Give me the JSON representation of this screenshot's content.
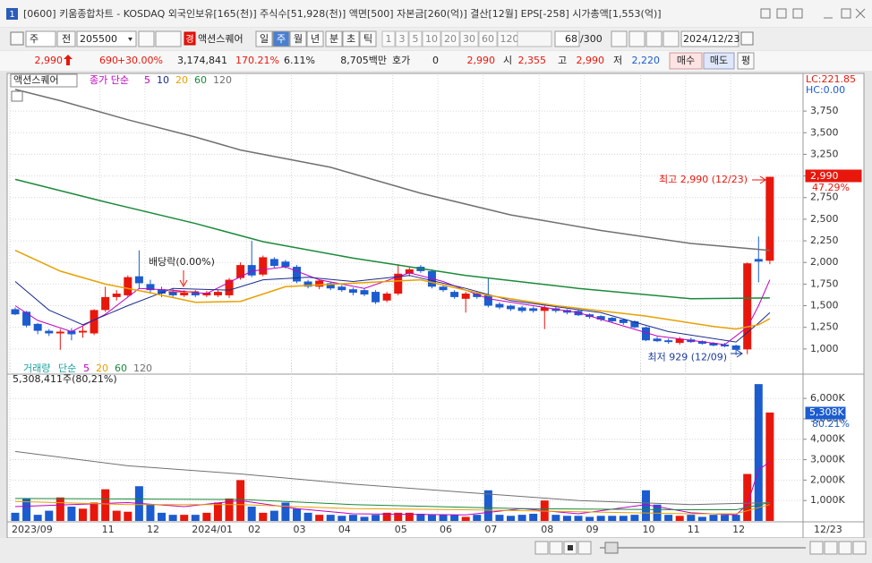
{
  "title_bar": {
    "number": "1",
    "text": "[0600] 키움종합차트 - KOSDAQ 외국인보유[165(천)] 주식수[51,928(천)] 액면[500] 자본금[260(억)] 결산[12월] EPS[-258] 시가총액[1,553(억)]"
  },
  "toolbar": {
    "period_type": "주",
    "adjust": "전",
    "code": "205500",
    "badge": "경",
    "name": "액션스퀘어",
    "periods": [
      "일",
      "주",
      "월",
      "년",
      "분",
      "초",
      "틱"
    ],
    "minutes": [
      "1",
      "3",
      "5",
      "10",
      "20",
      "30",
      "60",
      "120"
    ],
    "count": "68",
    "max": "/300",
    "date": "2024/12/23"
  },
  "quote": {
    "price": "2,990",
    "change": "690",
    "change_pct": "+30.00%",
    "volume": "3,174,841",
    "volume_pct": "170.21%",
    "turnover": "6.11%",
    "amount": "8,705백만",
    "bid_label": "호가",
    "bid_qty": "0",
    "bid_price": "2,990",
    "open_label": "시",
    "open": "2,355",
    "high_label": "고",
    "high": "2,990",
    "low_label": "저",
    "low": "2,220",
    "buy": "매수",
    "sell": "매도",
    "avg": "평"
  },
  "chart_data": [
    {
      "type": "candlestick",
      "name": "액션스퀘어",
      "ma_label": "종가 단순",
      "lc_label": "LC:221.85",
      "hc_label": "HC:0.00",
      "last_label": "2,990",
      "last_pct": "47.29%",
      "annotations": [
        "배당락(0.00%)",
        "최고 2,990 (12/23)",
        "최저 929 (12/09)"
      ],
      "up_color": "#e8170c",
      "down_color": "#1b5ccf",
      "ohlc": [
        [
          1460,
          1480,
          1390,
          1400
        ],
        [
          1430,
          1440,
          1250,
          1270
        ],
        [
          1290,
          1300,
          1170,
          1210
        ],
        [
          1210,
          1230,
          1150,
          1180
        ],
        [
          1180,
          1230,
          990,
          1200
        ],
        [
          1210,
          1240,
          1100,
          1170
        ],
        [
          1190,
          1260,
          1130,
          1210
        ],
        [
          1180,
          1460,
          1160,
          1450
        ],
        [
          1450,
          1720,
          1430,
          1600
        ],
        [
          1600,
          1680,
          1560,
          1640
        ],
        [
          1620,
          1850,
          1600,
          1830
        ],
        [
          1840,
          2140,
          1700,
          1760
        ],
        [
          1750,
          1800,
          1640,
          1680
        ],
        [
          1690,
          1720,
          1600,
          1640
        ],
        [
          1660,
          1700,
          1600,
          1620
        ],
        [
          1620,
          1680,
          1600,
          1650
        ],
        [
          1650,
          1680,
          1600,
          1620
        ],
        [
          1620,
          1670,
          1600,
          1650
        ],
        [
          1620,
          1680,
          1600,
          1660
        ],
        [
          1620,
          1820,
          1590,
          1800
        ],
        [
          1820,
          2000,
          1800,
          1970
        ],
        [
          1970,
          2250,
          1830,
          1850
        ],
        [
          1860,
          2080,
          1840,
          2060
        ],
        [
          2040,
          2060,
          1940,
          1960
        ],
        [
          2010,
          2030,
          1930,
          1950
        ],
        [
          1950,
          1970,
          1760,
          1780
        ],
        [
          1780,
          1800,
          1700,
          1720
        ],
        [
          1720,
          1800,
          1690,
          1790
        ],
        [
          1760,
          1780,
          1680,
          1700
        ],
        [
          1720,
          1740,
          1660,
          1680
        ],
        [
          1690,
          1710,
          1620,
          1650
        ],
        [
          1680,
          1700,
          1610,
          1630
        ],
        [
          1660,
          1680,
          1520,
          1540
        ],
        [
          1560,
          1660,
          1540,
          1640
        ],
        [
          1640,
          1980,
          1620,
          1870
        ],
        [
          1870,
          1940,
          1840,
          1920
        ],
        [
          1950,
          1970,
          1880,
          1900
        ],
        [
          1900,
          1920,
          1700,
          1720
        ],
        [
          1720,
          1740,
          1660,
          1680
        ],
        [
          1660,
          1680,
          1580,
          1600
        ],
        [
          1580,
          1660,
          1420,
          1640
        ],
        [
          1640,
          1660,
          1580,
          1600
        ],
        [
          1620,
          1820,
          1480,
          1500
        ],
        [
          1520,
          1540,
          1460,
          1480
        ],
        [
          1500,
          1510,
          1440,
          1460
        ],
        [
          1480,
          1500,
          1420,
          1440
        ],
        [
          1470,
          1490,
          1420,
          1440
        ],
        [
          1440,
          1500,
          1230,
          1480
        ],
        [
          1470,
          1490,
          1420,
          1440
        ],
        [
          1450,
          1460,
          1400,
          1420
        ],
        [
          1440,
          1450,
          1380,
          1390
        ],
        [
          1400,
          1410,
          1350,
          1370
        ],
        [
          1380,
          1390,
          1320,
          1340
        ],
        [
          1360,
          1370,
          1300,
          1320
        ],
        [
          1340,
          1350,
          1280,
          1300
        ],
        [
          1320,
          1330,
          1240,
          1250
        ],
        [
          1250,
          1260,
          1090,
          1100
        ],
        [
          1120,
          1140,
          1080,
          1090
        ],
        [
          1100,
          1120,
          1060,
          1080
        ],
        [
          1070,
          1140,
          1050,
          1120
        ],
        [
          1110,
          1130,
          1070,
          1080
        ],
        [
          1090,
          1100,
          1050,
          1060
        ],
        [
          1070,
          1080,
          1030,
          1040
        ],
        [
          1050,
          1070,
          1020,
          1030
        ],
        [
          1040,
          1050,
          929,
          990
        ],
        [
          995,
          2000,
          940,
          1990
        ],
        [
          2040,
          2300,
          1770,
          2010
        ],
        [
          2020,
          2990,
          1980,
          2990
        ]
      ],
      "series": [
        {
          "name": "5",
          "color": "#c000c0",
          "x": [
            0,
            2,
            5,
            8,
            11,
            14,
            17,
            21,
            24,
            27,
            31,
            35,
            38,
            42,
            50,
            57,
            63,
            65,
            66,
            67
          ],
          "values": [
            1500,
            1330,
            1200,
            1400,
            1700,
            1680,
            1640,
            1900,
            1950,
            1800,
            1700,
            1880,
            1780,
            1580,
            1420,
            1150,
            1050,
            1250,
            1500,
            1800
          ]
        },
        {
          "name": "10",
          "color": "#1a2a8c",
          "x": [
            0,
            3,
            6,
            10,
            14,
            19,
            22,
            26,
            30,
            35,
            40,
            44,
            52,
            58,
            64,
            66,
            67
          ],
          "values": [
            1780,
            1450,
            1280,
            1500,
            1700,
            1680,
            1800,
            1830,
            1780,
            1850,
            1700,
            1560,
            1420,
            1200,
            1080,
            1300,
            1420
          ]
        },
        {
          "name": "20",
          "color": "#e8a000",
          "x": [
            0,
            4,
            8,
            12,
            16,
            20,
            24,
            30,
            36,
            42,
            48,
            56,
            62,
            64,
            66,
            67
          ],
          "values": [
            2140,
            1900,
            1750,
            1650,
            1540,
            1550,
            1720,
            1760,
            1800,
            1620,
            1500,
            1380,
            1260,
            1230,
            1280,
            1350
          ]
        },
        {
          "name": "60",
          "color": "#1a8a3a",
          "x": [
            0,
            8,
            16,
            22,
            30,
            40,
            50,
            60,
            67
          ],
          "values": [
            2960,
            2700,
            2450,
            2240,
            2050,
            1850,
            1700,
            1580,
            1590
          ]
        },
        {
          "name": "120",
          "color": "#707070",
          "x": [
            0,
            4,
            10,
            16,
            20,
            28,
            36,
            44,
            52,
            60,
            67
          ],
          "values": [
            4000,
            3870,
            3650,
            3450,
            3300,
            3100,
            2800,
            2550,
            2370,
            2220,
            2140
          ]
        }
      ],
      "ylim": [
        740,
        4020
      ],
      "yticks": [
        {
          "value": 1000,
          "label": "1,000"
        },
        {
          "value": 1250,
          "label": "1,250"
        },
        {
          "value": 1500,
          "label": "1,500"
        },
        {
          "value": 1750,
          "label": "1,750"
        },
        {
          "value": 2000,
          "label": "2,000"
        },
        {
          "value": 2250,
          "label": "2,250"
        },
        {
          "value": 2500,
          "label": "2,500"
        },
        {
          "value": 2750,
          "label": "2,750"
        },
        {
          "value": 3000,
          "label": "3,000"
        },
        {
          "value": 3250,
          "label": "3,250"
        },
        {
          "value": 3500,
          "label": "3,500"
        },
        {
          "value": 3750,
          "label": "3,750"
        }
      ],
      "xticks": [
        {
          "value": 0,
          "label": "2023/09"
        },
        {
          "value": 8,
          "label": "11"
        },
        {
          "value": 12,
          "label": "12"
        },
        {
          "value": 16,
          "label": "2024/01"
        },
        {
          "value": 21,
          "label": "02"
        },
        {
          "value": 25,
          "label": "03"
        },
        {
          "value": 29,
          "label": "04"
        },
        {
          "value": 34,
          "label": "05"
        },
        {
          "value": 38,
          "label": "06"
        },
        {
          "value": 42,
          "label": "07"
        },
        {
          "value": 47,
          "label": "08"
        },
        {
          "value": 51,
          "label": "09"
        },
        {
          "value": 56,
          "label": "10"
        },
        {
          "value": 60,
          "label": "11"
        },
        {
          "value": 64,
          "label": "12"
        }
      ],
      "x_end_label": "12/23",
      "grid": true
    },
    {
      "type": "bar",
      "name": "거래량",
      "ma_label": "단순",
      "info": "5,308,411주(80,21%)",
      "last_label": "5,308K",
      "last_pct": "80.21%",
      "values": [
        400,
        1100,
        300,
        500,
        1150,
        700,
        600,
        900,
        1550,
        500,
        450,
        1700,
        800,
        400,
        300,
        300,
        300,
        400,
        900,
        1100,
        2000,
        700,
        400,
        500,
        900,
        600,
        400,
        300,
        300,
        250,
        300,
        200,
        300,
        400,
        400,
        400,
        350,
        300,
        300,
        300,
        200,
        300,
        1500,
        300,
        250,
        300,
        350,
        1000,
        300,
        250,
        250,
        200,
        250,
        250,
        250,
        300,
        1500,
        800,
        300,
        250,
        300,
        200,
        300,
        300,
        300,
        2300,
        6700,
        5308
      ],
      "series": [
        {
          "name": "5",
          "color": "#c000c0",
          "x": [
            0,
            5,
            10,
            15,
            20,
            25,
            30,
            40,
            45,
            50,
            56,
            60,
            64,
            65,
            66,
            67
          ],
          "values": [
            700,
            800,
            900,
            700,
            1000,
            600,
            350,
            300,
            600,
            350,
            800,
            400,
            300,
            800,
            2500,
            2900
          ]
        },
        {
          "name": "20",
          "color": "#e8a000",
          "x": [
            0,
            10,
            20,
            30,
            40,
            50,
            60,
            64,
            67
          ],
          "values": [
            950,
            800,
            800,
            600,
            550,
            450,
            350,
            350,
            800
          ]
        },
        {
          "name": "60",
          "color": "#1a8a3a",
          "x": [
            0,
            20,
            30,
            45,
            60,
            64,
            67
          ],
          "values": [
            1100,
            1050,
            800,
            600,
            550,
            550,
            900
          ]
        },
        {
          "name": "120",
          "color": "#707070",
          "x": [
            0,
            10,
            20,
            30,
            40,
            50,
            60,
            67
          ],
          "values": [
            3400,
            2700,
            2300,
            1800,
            1400,
            1000,
            800,
            900
          ]
        }
      ],
      "ylim": [
        0,
        7100
      ],
      "yticks": [
        {
          "value": 1000,
          "label": "1,000K"
        },
        {
          "value": 2000,
          "label": "2,000K"
        },
        {
          "value": 3000,
          "label": "3,000K"
        },
        {
          "value": 4000,
          "label": "4,000K"
        },
        {
          "value": 5000,
          "label": "5,000K"
        },
        {
          "value": 6000,
          "label": "6,000K"
        }
      ],
      "grid": true
    }
  ]
}
